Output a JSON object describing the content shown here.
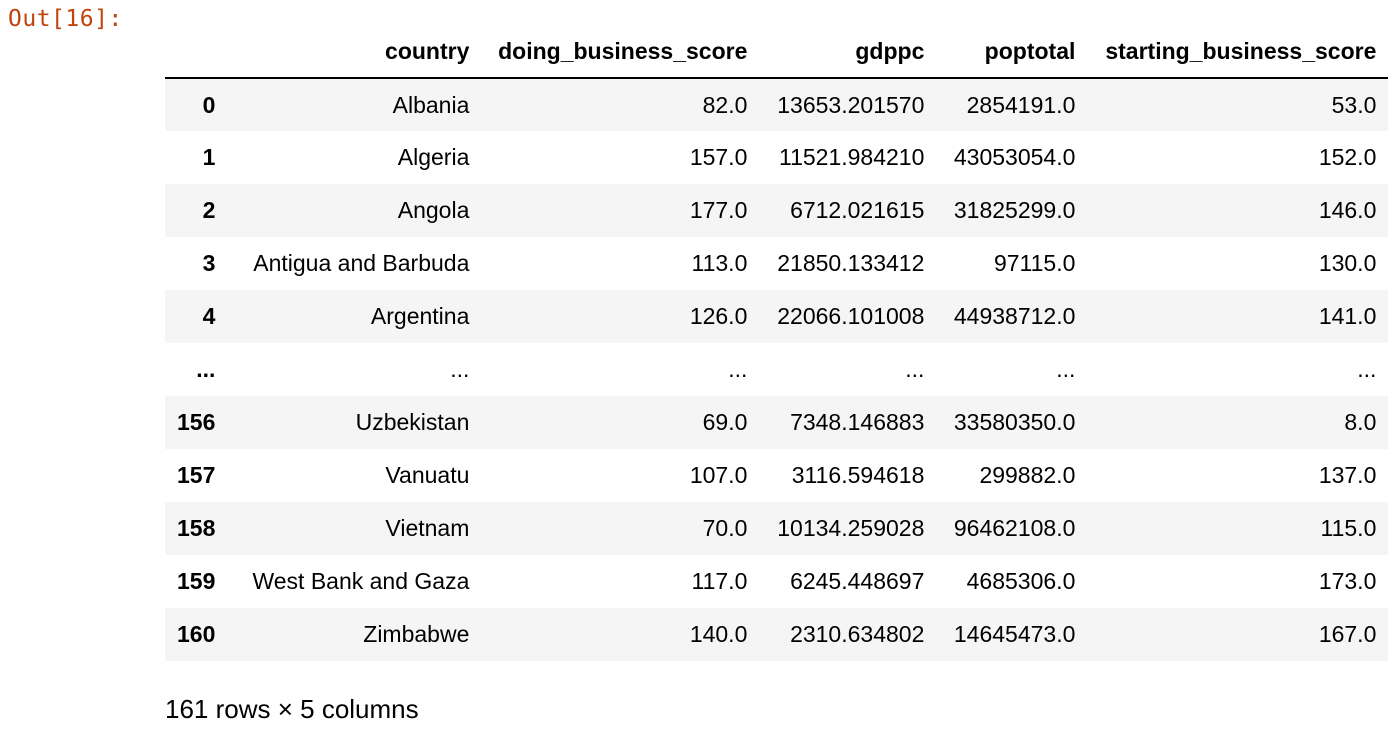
{
  "output": {
    "prompt": "Out[16]:"
  },
  "table": {
    "index_header": "",
    "columns": [
      "country",
      "doing_business_score",
      "gdppc",
      "poptotal",
      "starting_business_score"
    ],
    "rows": [
      {
        "index": "0",
        "cells": [
          "Albania",
          "82.0",
          "13653.201570",
          "2854191.0",
          "53.0"
        ]
      },
      {
        "index": "1",
        "cells": [
          "Algeria",
          "157.0",
          "11521.984210",
          "43053054.0",
          "152.0"
        ]
      },
      {
        "index": "2",
        "cells": [
          "Angola",
          "177.0",
          "6712.021615",
          "31825299.0",
          "146.0"
        ]
      },
      {
        "index": "3",
        "cells": [
          "Antigua and Barbuda",
          "113.0",
          "21850.133412",
          "97115.0",
          "130.0"
        ]
      },
      {
        "index": "4",
        "cells": [
          "Argentina",
          "126.0",
          "22066.101008",
          "44938712.0",
          "141.0"
        ]
      },
      {
        "index": "...",
        "cells": [
          "...",
          "...",
          "...",
          "...",
          "..."
        ]
      },
      {
        "index": "156",
        "cells": [
          "Uzbekistan",
          "69.0",
          "7348.146883",
          "33580350.0",
          "8.0"
        ]
      },
      {
        "index": "157",
        "cells": [
          "Vanuatu",
          "107.0",
          "3116.594618",
          "299882.0",
          "137.0"
        ]
      },
      {
        "index": "158",
        "cells": [
          "Vietnam",
          "70.0",
          "10134.259028",
          "96462108.0",
          "115.0"
        ]
      },
      {
        "index": "159",
        "cells": [
          "West Bank and Gaza",
          "117.0",
          "6245.448697",
          "4685306.0",
          "173.0"
        ]
      },
      {
        "index": "160",
        "cells": [
          "Zimbabwe",
          "140.0",
          "2310.634802",
          "14645473.0",
          "167.0"
        ]
      }
    ]
  },
  "shape_note": "161 rows × 5 columns",
  "colors": {
    "prompt": "#c1440e",
    "stripe": "#f5f5f5",
    "text": "#000000"
  }
}
